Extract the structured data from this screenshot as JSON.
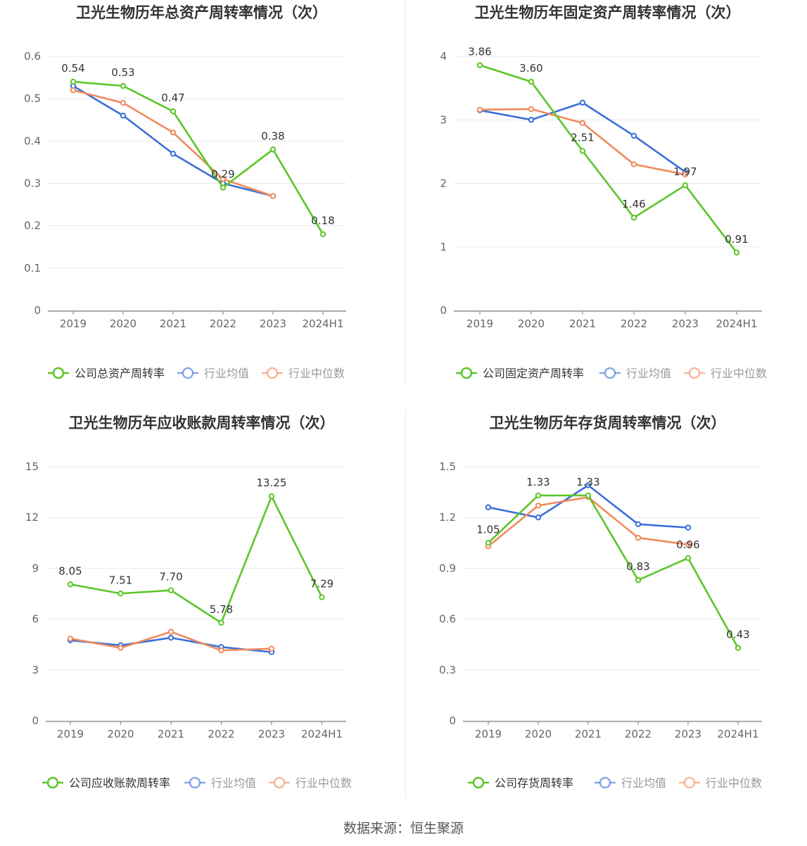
{
  "colors": {
    "company": "#5cc628",
    "avg": "#3a6fd8",
    "median": "#f08a5d"
  },
  "source": "数据来源：恒生聚源",
  "chart_data": [
    {
      "type": "line",
      "title": "卫光生物历年总资产周转率情况（次）",
      "categories": [
        "2019",
        "2020",
        "2021",
        "2022",
        "2023",
        "2024H1"
      ],
      "ylim": [
        0,
        0.6
      ],
      "yticks": [
        "0",
        "0.1",
        "0.2",
        "0.3",
        "0.4",
        "0.5",
        "0.6"
      ],
      "grid": true,
      "legend_position": "bottom",
      "series": [
        {
          "name": "公司总资产周转率",
          "color": "#5cc628",
          "values": [
            0.54,
            0.53,
            0.47,
            0.29,
            0.38,
            0.18
          ],
          "labels": [
            "0.54",
            "0.53",
            "0.47",
            "0.29",
            "0.38",
            "0.18"
          ]
        },
        {
          "name": "行业均值",
          "color": "#3a6fd8",
          "values": [
            0.53,
            0.46,
            0.37,
            0.3,
            0.27,
            null
          ]
        },
        {
          "name": "行业中位数",
          "color": "#f08a5d",
          "values": [
            0.52,
            0.49,
            0.42,
            0.31,
            0.27,
            null
          ]
        }
      ]
    },
    {
      "type": "line",
      "title": "卫光生物历年固定资产周转率情况（次）",
      "categories": [
        "2019",
        "2020",
        "2021",
        "2022",
        "2023",
        "2024H1"
      ],
      "ylim": [
        0,
        4
      ],
      "yticks": [
        "0",
        "1",
        "2",
        "3",
        "4"
      ],
      "grid": true,
      "legend_position": "bottom",
      "series": [
        {
          "name": "公司固定资产周转率",
          "color": "#5cc628",
          "values": [
            3.86,
            3.6,
            2.51,
            1.46,
            1.97,
            0.91
          ],
          "labels": [
            "3.86",
            "3.60",
            "2.51",
            "1.46",
            "1.97",
            "0.91"
          ]
        },
        {
          "name": "行业均值",
          "color": "#3a6fd8",
          "values": [
            3.15,
            3.0,
            3.27,
            2.75,
            2.18,
            null
          ]
        },
        {
          "name": "行业中位数",
          "color": "#f08a5d",
          "values": [
            3.16,
            3.17,
            2.95,
            2.3,
            2.14,
            null
          ]
        }
      ]
    },
    {
      "type": "line",
      "title": "卫光生物历年应收账款周转率情况（次）",
      "categories": [
        "2019",
        "2020",
        "2021",
        "2022",
        "2023",
        "2024H1"
      ],
      "ylim": [
        0,
        15
      ],
      "yticks": [
        "0",
        "3",
        "6",
        "9",
        "12",
        "15"
      ],
      "grid": true,
      "legend_position": "bottom",
      "series": [
        {
          "name": "公司应收账款周转率",
          "color": "#5cc628",
          "values": [
            8.05,
            7.51,
            7.7,
            5.78,
            13.25,
            7.29
          ],
          "labels": [
            "8.05",
            "7.51",
            "7.70",
            "5.78",
            "13.25",
            "7.29"
          ]
        },
        {
          "name": "行业均值",
          "color": "#3a6fd8",
          "values": [
            4.75,
            4.45,
            4.9,
            4.35,
            4.05,
            null
          ]
        },
        {
          "name": "行业中位数",
          "color": "#f08a5d",
          "values": [
            4.85,
            4.3,
            5.25,
            4.15,
            4.25,
            null
          ]
        }
      ]
    },
    {
      "type": "line",
      "title": "卫光生物历年存货周转率情况（次）",
      "categories": [
        "2019",
        "2020",
        "2021",
        "2022",
        "2023",
        "2024H1"
      ],
      "ylim": [
        0,
        1.5
      ],
      "yticks": [
        "0",
        "0.3",
        "0.6",
        "0.9",
        "1.2",
        "1.5"
      ],
      "grid": true,
      "legend_position": "bottom",
      "series": [
        {
          "name": "公司存货周转率",
          "color": "#5cc628",
          "values": [
            1.05,
            1.33,
            1.33,
            0.83,
            0.96,
            0.43
          ],
          "labels": [
            "1.05",
            "1.33",
            "1.33",
            "0.83",
            "0.96",
            "0.43"
          ]
        },
        {
          "name": "行业均值",
          "color": "#3a6fd8",
          "values": [
            1.26,
            1.2,
            1.39,
            1.16,
            1.14,
            null
          ]
        },
        {
          "name": "行业中位数",
          "color": "#f08a5d",
          "values": [
            1.03,
            1.27,
            1.32,
            1.08,
            1.04,
            null
          ]
        }
      ]
    }
  ]
}
